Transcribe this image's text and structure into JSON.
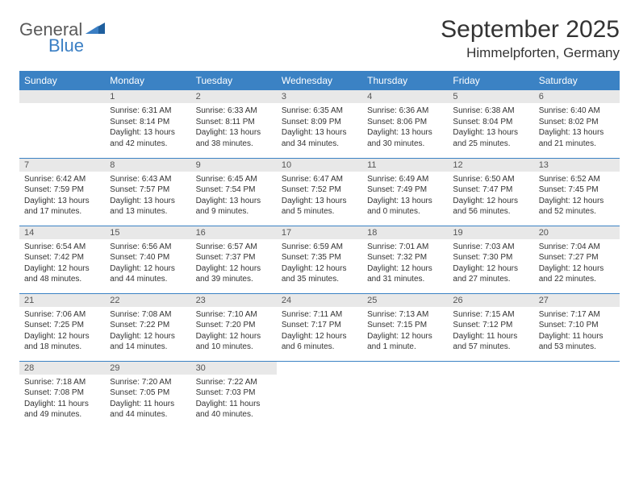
{
  "brand": {
    "word1": "General",
    "word2": "Blue",
    "text_color_1": "#5a5a5a",
    "text_color_2": "#3b7fc4",
    "shape_color": "#1f5f9e"
  },
  "title": "September 2025",
  "location": "Himmelpforten, Germany",
  "header_bg": "#3b82c4",
  "header_text_color": "#ffffff",
  "daynum_bg": "#e8e8e8",
  "daynum_color": "#555555",
  "cell_text_color": "#333333",
  "row_border_color": "#3b82c4",
  "day_headers": [
    "Sunday",
    "Monday",
    "Tuesday",
    "Wednesday",
    "Thursday",
    "Friday",
    "Saturday"
  ],
  "weeks": [
    [
      {
        "n": "",
        "lines": []
      },
      {
        "n": "1",
        "lines": [
          "Sunrise: 6:31 AM",
          "Sunset: 8:14 PM",
          "Daylight: 13 hours",
          "and 42 minutes."
        ]
      },
      {
        "n": "2",
        "lines": [
          "Sunrise: 6:33 AM",
          "Sunset: 8:11 PM",
          "Daylight: 13 hours",
          "and 38 minutes."
        ]
      },
      {
        "n": "3",
        "lines": [
          "Sunrise: 6:35 AM",
          "Sunset: 8:09 PM",
          "Daylight: 13 hours",
          "and 34 minutes."
        ]
      },
      {
        "n": "4",
        "lines": [
          "Sunrise: 6:36 AM",
          "Sunset: 8:06 PM",
          "Daylight: 13 hours",
          "and 30 minutes."
        ]
      },
      {
        "n": "5",
        "lines": [
          "Sunrise: 6:38 AM",
          "Sunset: 8:04 PM",
          "Daylight: 13 hours",
          "and 25 minutes."
        ]
      },
      {
        "n": "6",
        "lines": [
          "Sunrise: 6:40 AM",
          "Sunset: 8:02 PM",
          "Daylight: 13 hours",
          "and 21 minutes."
        ]
      }
    ],
    [
      {
        "n": "7",
        "lines": [
          "Sunrise: 6:42 AM",
          "Sunset: 7:59 PM",
          "Daylight: 13 hours",
          "and 17 minutes."
        ]
      },
      {
        "n": "8",
        "lines": [
          "Sunrise: 6:43 AM",
          "Sunset: 7:57 PM",
          "Daylight: 13 hours",
          "and 13 minutes."
        ]
      },
      {
        "n": "9",
        "lines": [
          "Sunrise: 6:45 AM",
          "Sunset: 7:54 PM",
          "Daylight: 13 hours",
          "and 9 minutes."
        ]
      },
      {
        "n": "10",
        "lines": [
          "Sunrise: 6:47 AM",
          "Sunset: 7:52 PM",
          "Daylight: 13 hours",
          "and 5 minutes."
        ]
      },
      {
        "n": "11",
        "lines": [
          "Sunrise: 6:49 AM",
          "Sunset: 7:49 PM",
          "Daylight: 13 hours",
          "and 0 minutes."
        ]
      },
      {
        "n": "12",
        "lines": [
          "Sunrise: 6:50 AM",
          "Sunset: 7:47 PM",
          "Daylight: 12 hours",
          "and 56 minutes."
        ]
      },
      {
        "n": "13",
        "lines": [
          "Sunrise: 6:52 AM",
          "Sunset: 7:45 PM",
          "Daylight: 12 hours",
          "and 52 minutes."
        ]
      }
    ],
    [
      {
        "n": "14",
        "lines": [
          "Sunrise: 6:54 AM",
          "Sunset: 7:42 PM",
          "Daylight: 12 hours",
          "and 48 minutes."
        ]
      },
      {
        "n": "15",
        "lines": [
          "Sunrise: 6:56 AM",
          "Sunset: 7:40 PM",
          "Daylight: 12 hours",
          "and 44 minutes."
        ]
      },
      {
        "n": "16",
        "lines": [
          "Sunrise: 6:57 AM",
          "Sunset: 7:37 PM",
          "Daylight: 12 hours",
          "and 39 minutes."
        ]
      },
      {
        "n": "17",
        "lines": [
          "Sunrise: 6:59 AM",
          "Sunset: 7:35 PM",
          "Daylight: 12 hours",
          "and 35 minutes."
        ]
      },
      {
        "n": "18",
        "lines": [
          "Sunrise: 7:01 AM",
          "Sunset: 7:32 PM",
          "Daylight: 12 hours",
          "and 31 minutes."
        ]
      },
      {
        "n": "19",
        "lines": [
          "Sunrise: 7:03 AM",
          "Sunset: 7:30 PM",
          "Daylight: 12 hours",
          "and 27 minutes."
        ]
      },
      {
        "n": "20",
        "lines": [
          "Sunrise: 7:04 AM",
          "Sunset: 7:27 PM",
          "Daylight: 12 hours",
          "and 22 minutes."
        ]
      }
    ],
    [
      {
        "n": "21",
        "lines": [
          "Sunrise: 7:06 AM",
          "Sunset: 7:25 PM",
          "Daylight: 12 hours",
          "and 18 minutes."
        ]
      },
      {
        "n": "22",
        "lines": [
          "Sunrise: 7:08 AM",
          "Sunset: 7:22 PM",
          "Daylight: 12 hours",
          "and 14 minutes."
        ]
      },
      {
        "n": "23",
        "lines": [
          "Sunrise: 7:10 AM",
          "Sunset: 7:20 PM",
          "Daylight: 12 hours",
          "and 10 minutes."
        ]
      },
      {
        "n": "24",
        "lines": [
          "Sunrise: 7:11 AM",
          "Sunset: 7:17 PM",
          "Daylight: 12 hours",
          "and 6 minutes."
        ]
      },
      {
        "n": "25",
        "lines": [
          "Sunrise: 7:13 AM",
          "Sunset: 7:15 PM",
          "Daylight: 12 hours",
          "and 1 minute."
        ]
      },
      {
        "n": "26",
        "lines": [
          "Sunrise: 7:15 AM",
          "Sunset: 7:12 PM",
          "Daylight: 11 hours",
          "and 57 minutes."
        ]
      },
      {
        "n": "27",
        "lines": [
          "Sunrise: 7:17 AM",
          "Sunset: 7:10 PM",
          "Daylight: 11 hours",
          "and 53 minutes."
        ]
      }
    ],
    [
      {
        "n": "28",
        "lines": [
          "Sunrise: 7:18 AM",
          "Sunset: 7:08 PM",
          "Daylight: 11 hours",
          "and 49 minutes."
        ]
      },
      {
        "n": "29",
        "lines": [
          "Sunrise: 7:20 AM",
          "Sunset: 7:05 PM",
          "Daylight: 11 hours",
          "and 44 minutes."
        ]
      },
      {
        "n": "30",
        "lines": [
          "Sunrise: 7:22 AM",
          "Sunset: 7:03 PM",
          "Daylight: 11 hours",
          "and 40 minutes."
        ]
      },
      {
        "n": "",
        "lines": []
      },
      {
        "n": "",
        "lines": []
      },
      {
        "n": "",
        "lines": []
      },
      {
        "n": "",
        "lines": []
      }
    ]
  ]
}
